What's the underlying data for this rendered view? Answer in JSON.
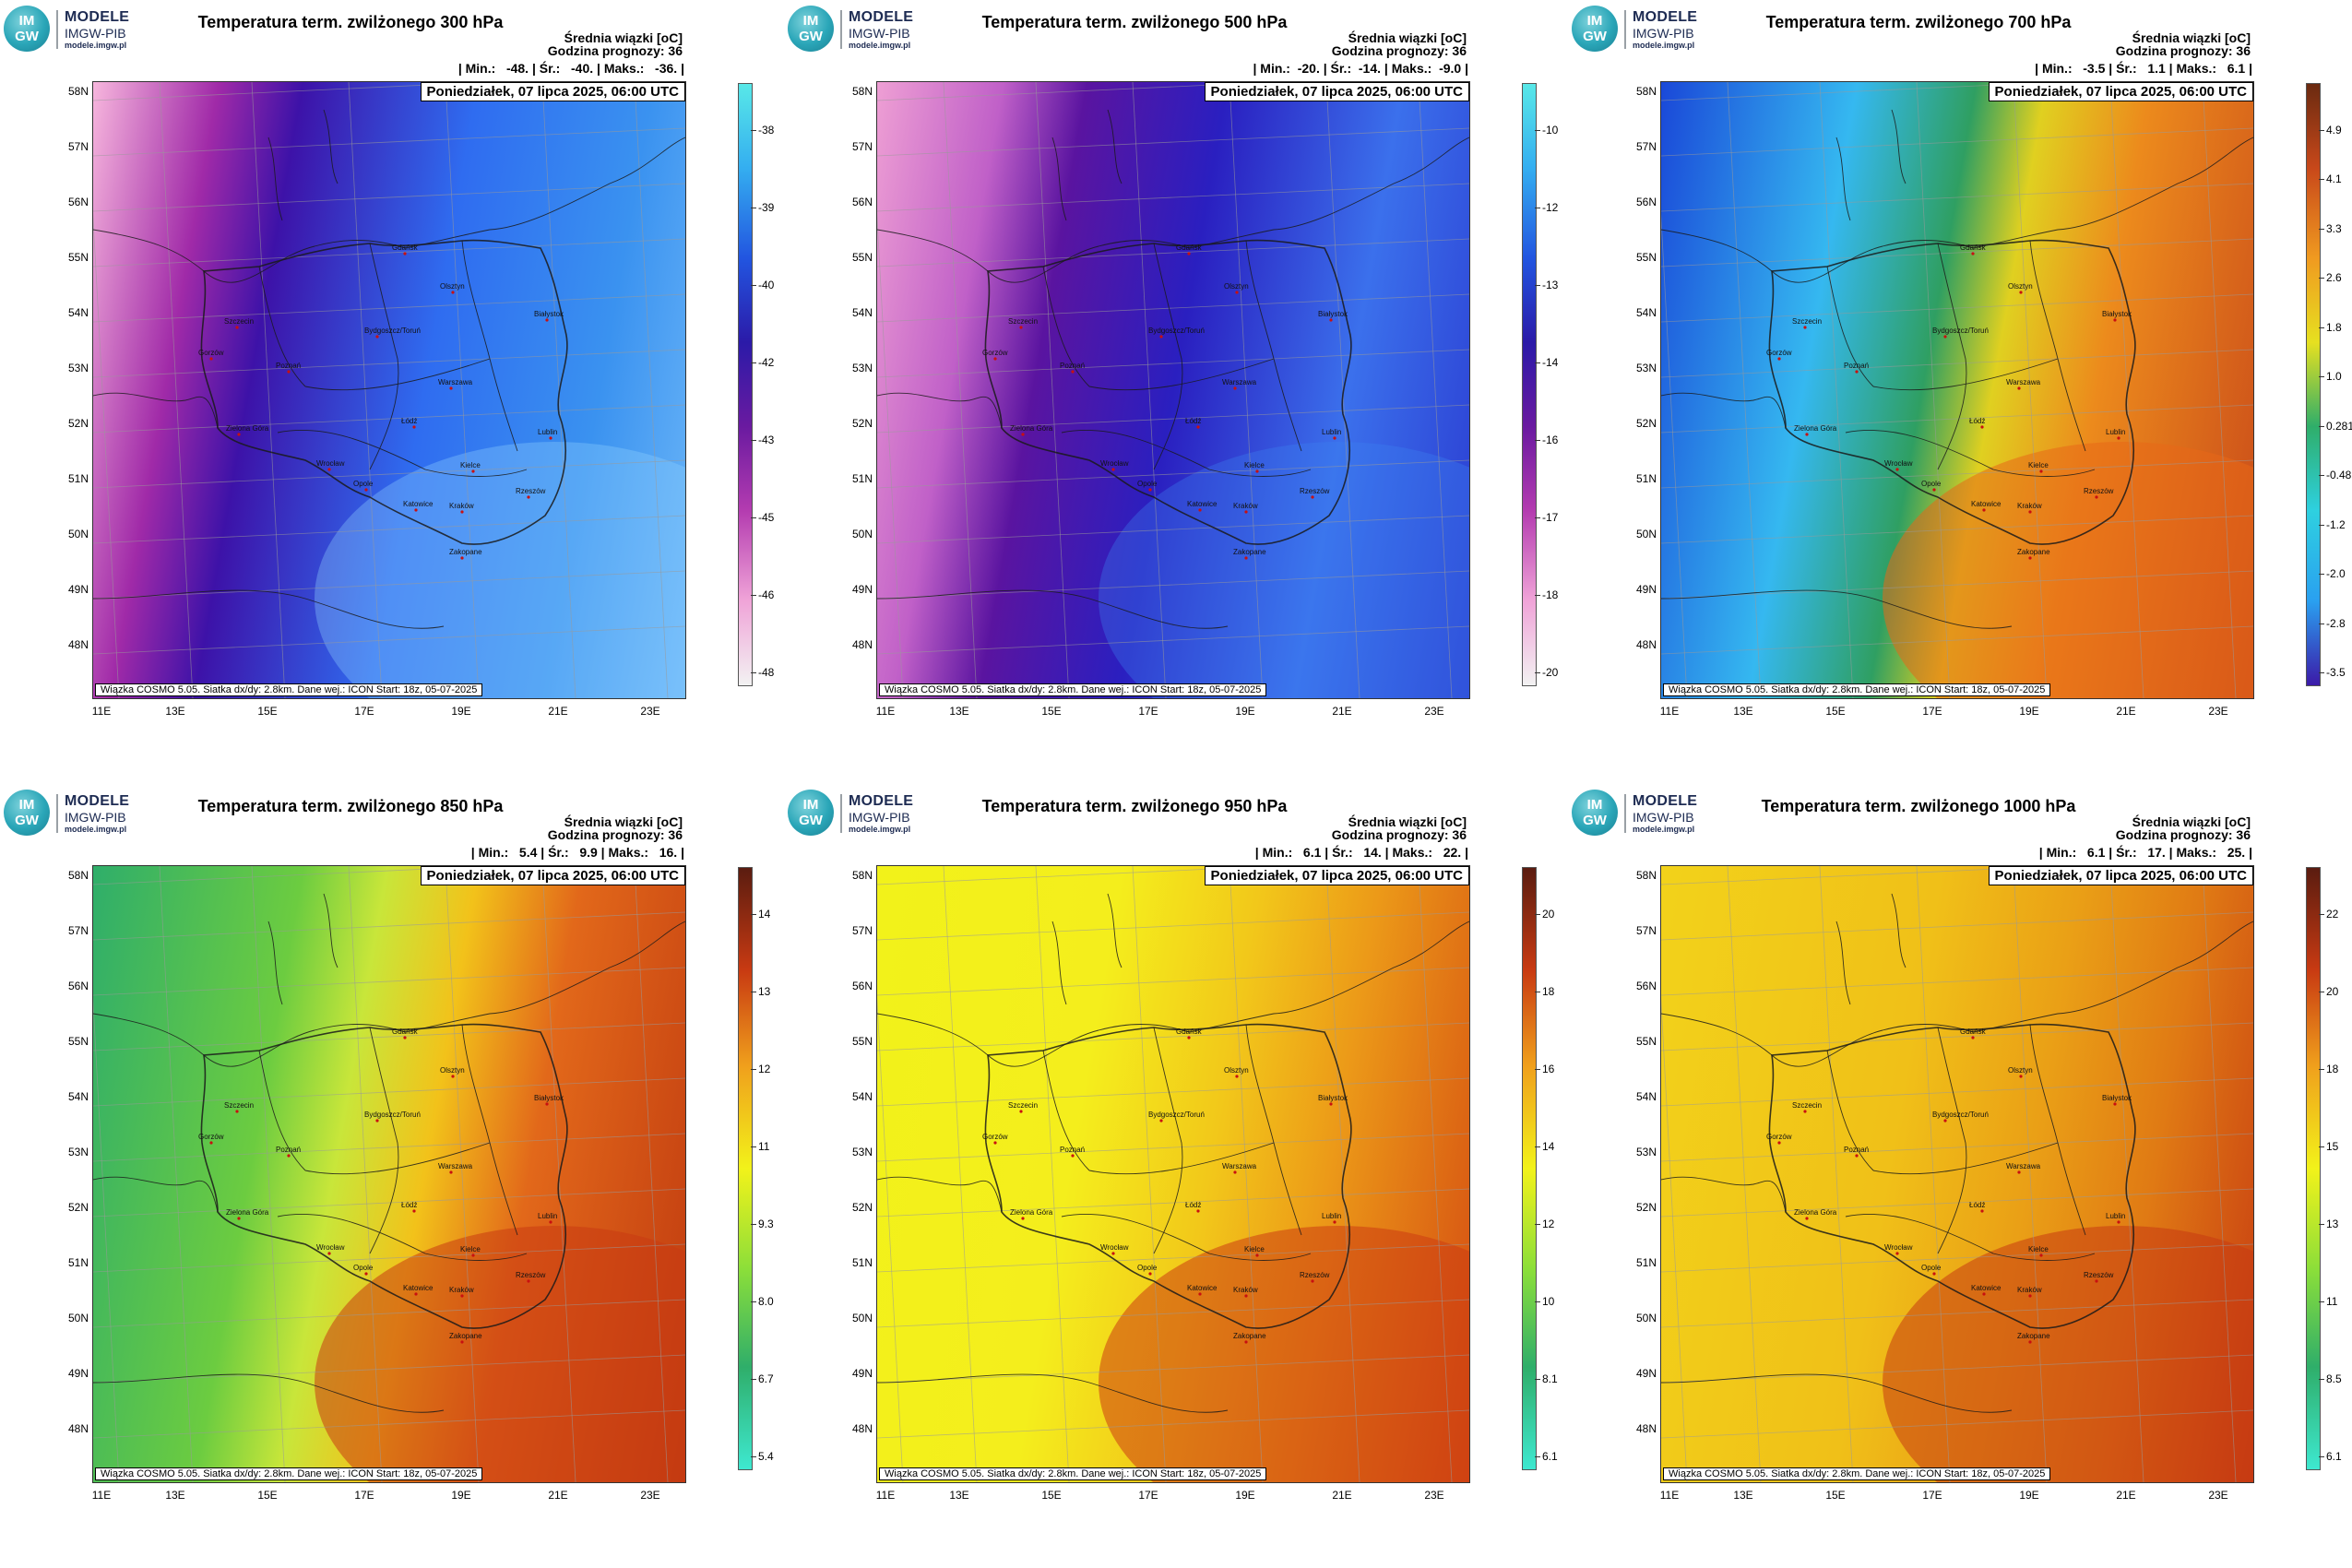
{
  "logo": {
    "mark_top": "IM",
    "mark_bottom": "GW",
    "name": "MODELE",
    "org": "IMGW-PIB",
    "url": "modele.imgw.pl"
  },
  "info": {
    "mean_label": "Średnia wiązki [oC]",
    "forecast_hour": "Godzina prognozy: 36"
  },
  "date": "Poniedziałek, 07 lipca 2025, 06:00 UTC",
  "footer": "Wiązka  COSMO 5.05. Siatka dx/dy: 2.8km. Dane wej.: ICON Start: 18z, 05-07-2025",
  "lat_labels": [
    "58N",
    "57N",
    "56N",
    "55N",
    "54N",
    "53N",
    "52N",
    "51N",
    "50N",
    "49N",
    "48N"
  ],
  "lon_labels": [
    "11E",
    "13E",
    "15E",
    "17E",
    "19E",
    "21E",
    "23E"
  ],
  "cities": [
    "Gdańsk",
    "Olsztyn",
    "Szczecin",
    "Bydgoszcz/Toruń",
    "Białystok",
    "Gorzów",
    "Poznań",
    "Warszawa",
    "Zielona Góra",
    "Łódź",
    "Lublin",
    "Wrocław",
    "Kielce",
    "Opole",
    "Katowice",
    "Kraków",
    "Rzeszów",
    "Zakopane"
  ],
  "panels": [
    {
      "title": "Temperatura term. zwilżonego 300 hPa",
      "stats": "| Min.:   -48. | Śr.:   -40. | Maks.:   -36. |",
      "ticks": [
        "-38",
        "-39",
        "-40",
        "-42",
        "-43",
        "-45",
        "-46",
        "-48"
      ],
      "colors": {
        "west": "#f7b6dd",
        "mid": "#3d12a8",
        "east": "#2f86ee",
        "warm": "#8fd0ff"
      }
    },
    {
      "title": "Temperatura term. zwilżonego 500 hPa",
      "stats": "| Min.:  -20. | Śr.:  -14. | Maks.:  -9.0 |",
      "ticks": [
        "-10",
        "-12",
        "-13",
        "-14",
        "-16",
        "-17",
        "-18",
        "-20"
      ],
      "colors": {
        "west": "#ee9fd4",
        "mid": "#5a14a0",
        "east": "#2a1fc0",
        "warm": "#3b80f2"
      }
    },
    {
      "title": "Temperatura term. zwilżonego 700 hPa",
      "stats": "| Min.:   -3.5 | Śr.:   1.1 | Maks.:   6.1 |",
      "ticks": [
        "4.9",
        "4.1",
        "3.3",
        "2.6",
        "1.8",
        "1.0",
        "0.281",
        "-0.482",
        "-1.2",
        "-2.0",
        "-2.8",
        "-3.5"
      ],
      "colors": {
        "west": "#1a48d8",
        "mid": "#35b8f0",
        "east": "#2f9f62",
        "warm": "#e86818"
      }
    },
    {
      "title": "Temperatura term. zwilżonego 850 hPa",
      "stats": "| Min.:   5.4 | Śr.:   9.9 | Maks.:   16. |",
      "ticks": [
        "14",
        "13",
        "12",
        "11",
        "9.3",
        "8.0",
        "6.7",
        "5.4"
      ],
      "colors": {
        "west": "#2fae6a",
        "mid": "#a8e038",
        "east": "#e89418",
        "warm": "#c83a12"
      }
    },
    {
      "title": "Temperatura term. zwilżonego 950 hPa",
      "stats": "| Min.:   6.1 | Śr.:   14. | Maks.:   22. |",
      "ticks": [
        "20",
        "18",
        "16",
        "14",
        "12",
        "10",
        "8.1",
        "6.1"
      ],
      "colors": {
        "west": "#f2f21a",
        "mid": "#f6d21c",
        "east": "#ec9a18",
        "warm": "#cc3c12"
      }
    },
    {
      "title": "Temperatura term. zwilżonego 1000 hPa",
      "stats": "| Min.:   6.1 | Śr.:   17. | Maks.:   25. |",
      "ticks": [
        "22",
        "20",
        "18",
        "15",
        "13",
        "11",
        "8.5",
        "6.1"
      ],
      "colors": {
        "west": "#f2d21a",
        "mid": "#f0b418",
        "east": "#e88a16",
        "warm": "#c63a12"
      }
    }
  ]
}
